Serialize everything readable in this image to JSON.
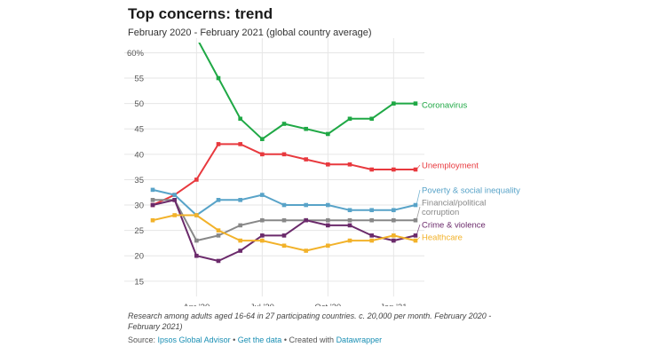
{
  "chart_data": {
    "type": "line",
    "title": "Top concerns: trend",
    "subtitle": "February 2020 - February 2021 (global country average)",
    "x": [
      "Feb 2020",
      "Mar 2020",
      "Apr 2020",
      "May 2020",
      "Jun 2020",
      "Jul 2020",
      "Aug 2020",
      "Sep 2020",
      "Oct 2020",
      "Nov 2020",
      "Dec 2020",
      "Jan 2021",
      "Feb 2021"
    ],
    "x_tick_labels": [
      {
        "at": "Apr 2020",
        "label": "Apr '20"
      },
      {
        "at": "Jul 2020",
        "label": "Jul '20"
      },
      {
        "at": "Oct 2020",
        "label": "Oct '20"
      },
      {
        "at": "Jan 2021",
        "label": "Jan '21"
      }
    ],
    "y_ticks": [
      15,
      20,
      25,
      30,
      35,
      40,
      45,
      50,
      55,
      60
    ],
    "y_tick_labels": [
      "15",
      "20",
      "25",
      "30",
      "35",
      "40",
      "45",
      "50",
      "55",
      "60%"
    ],
    "ylim": [
      12,
      62
    ],
    "grid": true,
    "legend": "inline labels at line ends (right)",
    "series": [
      {
        "name": "Coronavirus",
        "color": "#1fa845",
        "values": [
          null,
          null,
          63,
          55,
          47,
          43,
          46,
          45,
          44,
          47,
          47,
          50,
          50
        ]
      },
      {
        "name": "Unemployment",
        "color": "#e8393e",
        "values": [
          30,
          32,
          35,
          42,
          42,
          40,
          40,
          39,
          38,
          38,
          37,
          37,
          37
        ]
      },
      {
        "name": "Poverty & social inequality",
        "color": "#58a3c8",
        "values": [
          33,
          32,
          28,
          31,
          31,
          32,
          30,
          30,
          30,
          29,
          29,
          29,
          30
        ]
      },
      {
        "name": "Financial/political corruption",
        "color": "#888888",
        "values": [
          31,
          31,
          23,
          24,
          26,
          27,
          27,
          27,
          27,
          27,
          27,
          27,
          27
        ]
      },
      {
        "name": "Crime & violence",
        "color": "#6b2a6b",
        "values": [
          30,
          31,
          20,
          19,
          21,
          24,
          24,
          27,
          26,
          26,
          24,
          23,
          24
        ]
      },
      {
        "name": "Healthcare",
        "color": "#f2b22a",
        "values": [
          27,
          28,
          28,
          25,
          23,
          23,
          22,
          21,
          22,
          23,
          23,
          24,
          23
        ]
      }
    ],
    "series_label_lines": [
      [
        "Coronavirus"
      ],
      [
        "Unemployment"
      ],
      [
        "Poverty & social inequality"
      ],
      [
        "Financial/political",
        "corruption"
      ],
      [
        "Crime & violence"
      ],
      [
        "Healthcare"
      ]
    ]
  },
  "notes": "Research among adults aged 16-64 in 27 participating countries. c. 20,000 per month. February 2020 - February 2021)",
  "source": {
    "prefix": "Source:",
    "publisher": "Ipsos Global Advisor",
    "separator": "•",
    "data_link": "Get the data",
    "created": "Created with",
    "tool": "Datawrapper"
  }
}
